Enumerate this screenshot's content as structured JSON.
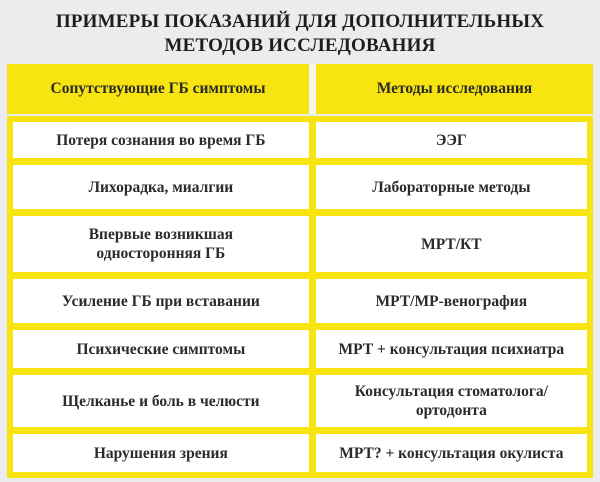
{
  "title": "ПРИМЕРЫ ПОКАЗАНИЙ ДЛЯ ДОПОЛНИТЕЛЬНЫХ МЕТОДОВ ИССЛЕДОВАНИЯ",
  "colors": {
    "accent_yellow": "#F8E411",
    "page_background": "#EAECEE",
    "cell_background": "#FFFFFF",
    "text": "#2B2B28"
  },
  "table": {
    "columns": [
      "Сопутствующие ГБ симптомы",
      "Методы исследования"
    ],
    "rows": [
      {
        "symptom": "Потеря сознания во время ГБ",
        "method": "ЭЭГ"
      },
      {
        "symptom": "Лихорадка, миалгии",
        "method": "Лабораторные методы"
      },
      {
        "symptom": "Впервые возникшая односторонняя ГБ",
        "method": "МРТ/КТ"
      },
      {
        "symptom": "Усиление ГБ при вставании",
        "method": "МРТ/МР-венография"
      },
      {
        "symptom": "Психические симптомы",
        "method": "МРТ + консультация психиатра"
      },
      {
        "symptom": "Щелканье и боль в челюсти",
        "method": "Консультация стоматолога/​ортодонта"
      },
      {
        "symptom": "Нарушения зрения",
        "method": "МРТ? + консультация окулиста"
      }
    ]
  }
}
